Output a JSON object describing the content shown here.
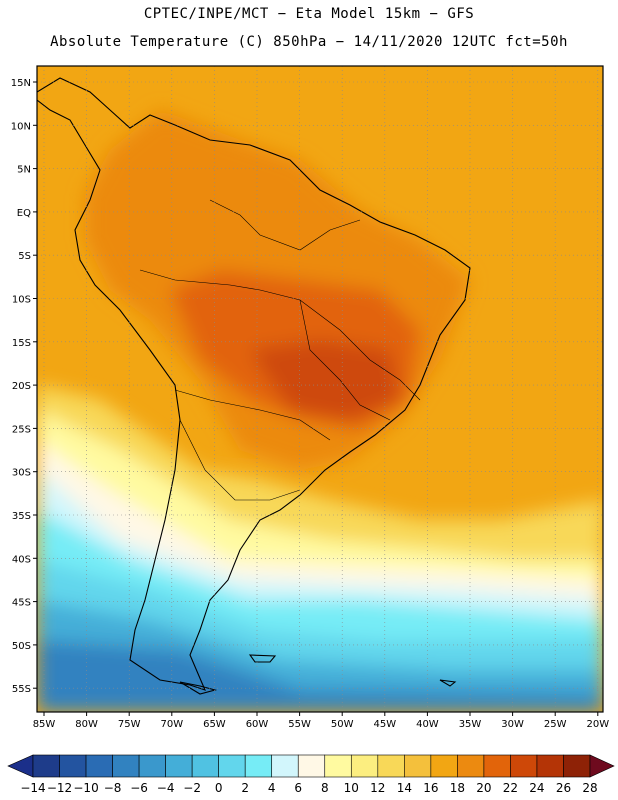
{
  "header": {
    "line1": "CPTEC/INPE/MCT −  Eta Model 15km − GFS",
    "line2": "Absolute Temperature (C) 850hPa − 14/11/2020 12UTC fct=50h"
  },
  "map": {
    "lat_labels": [
      "15N",
      "10N",
      "5N",
      "EQ",
      "5S",
      "10S",
      "15S",
      "20S",
      "25S",
      "30S",
      "35S",
      "40S",
      "45S",
      "50S",
      "55S"
    ],
    "lon_labels": [
      "85W",
      "80W",
      "75W",
      "70W",
      "65W",
      "60W",
      "55W",
      "50W",
      "45W",
      "40W",
      "35W",
      "30W",
      "25W",
      "20W"
    ],
    "ocean_base_color": "#f2a613"
  },
  "legend": {
    "ticks": [
      "−14",
      "−12",
      "−10",
      "−8",
      "−6",
      "−4",
      "−2",
      "0",
      "2",
      "4",
      "6",
      "8",
      "10",
      "12",
      "14",
      "16",
      "18",
      "20",
      "22",
      "24",
      "26",
      "28"
    ],
    "colors": [
      "#1e3c8a",
      "#2354a0",
      "#2a6cb4",
      "#3182c0",
      "#3a98cc",
      "#44aed8",
      "#50c2e2",
      "#62d6ec",
      "#76ecf6",
      "#d2f6fc",
      "#fff8e6",
      "#fffaa0",
      "#fcee80",
      "#f8d858",
      "#f4c03c",
      "#f2a613",
      "#ec8a10",
      "#e2640a",
      "#ce4808",
      "#b43406",
      "#8e2206"
    ],
    "left_arrow_color": "#1b2f8a",
    "right_arrow_color": "#6e0a1e"
  }
}
